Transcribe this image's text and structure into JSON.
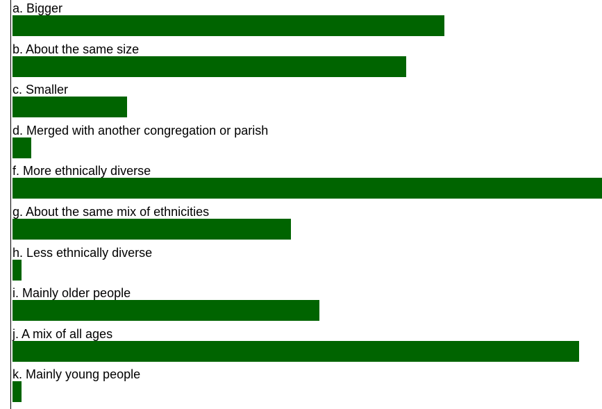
{
  "chart_data": {
    "type": "bar",
    "orientation": "horizontal",
    "bar_color": "#006400",
    "axis_line_color": "#000000",
    "categories": [
      "a. Bigger",
      "b. About the same size",
      "c. Smaller",
      "d. Merged with another congregation or parish",
      "f. More ethnically diverse",
      "g. About the same mix of ethnicities",
      "h. Less ethnically diverse",
      "i. Mainly older people",
      "j. A mix of all ages",
      "k. Mainly young people"
    ],
    "values": [
      622,
      567,
      165,
      27,
      849,
      401,
      13,
      442,
      816,
      13
    ],
    "xlim": [
      0,
      849
    ],
    "grid": false,
    "legend": "none",
    "title": "",
    "xlabel": "",
    "ylabel": ""
  }
}
